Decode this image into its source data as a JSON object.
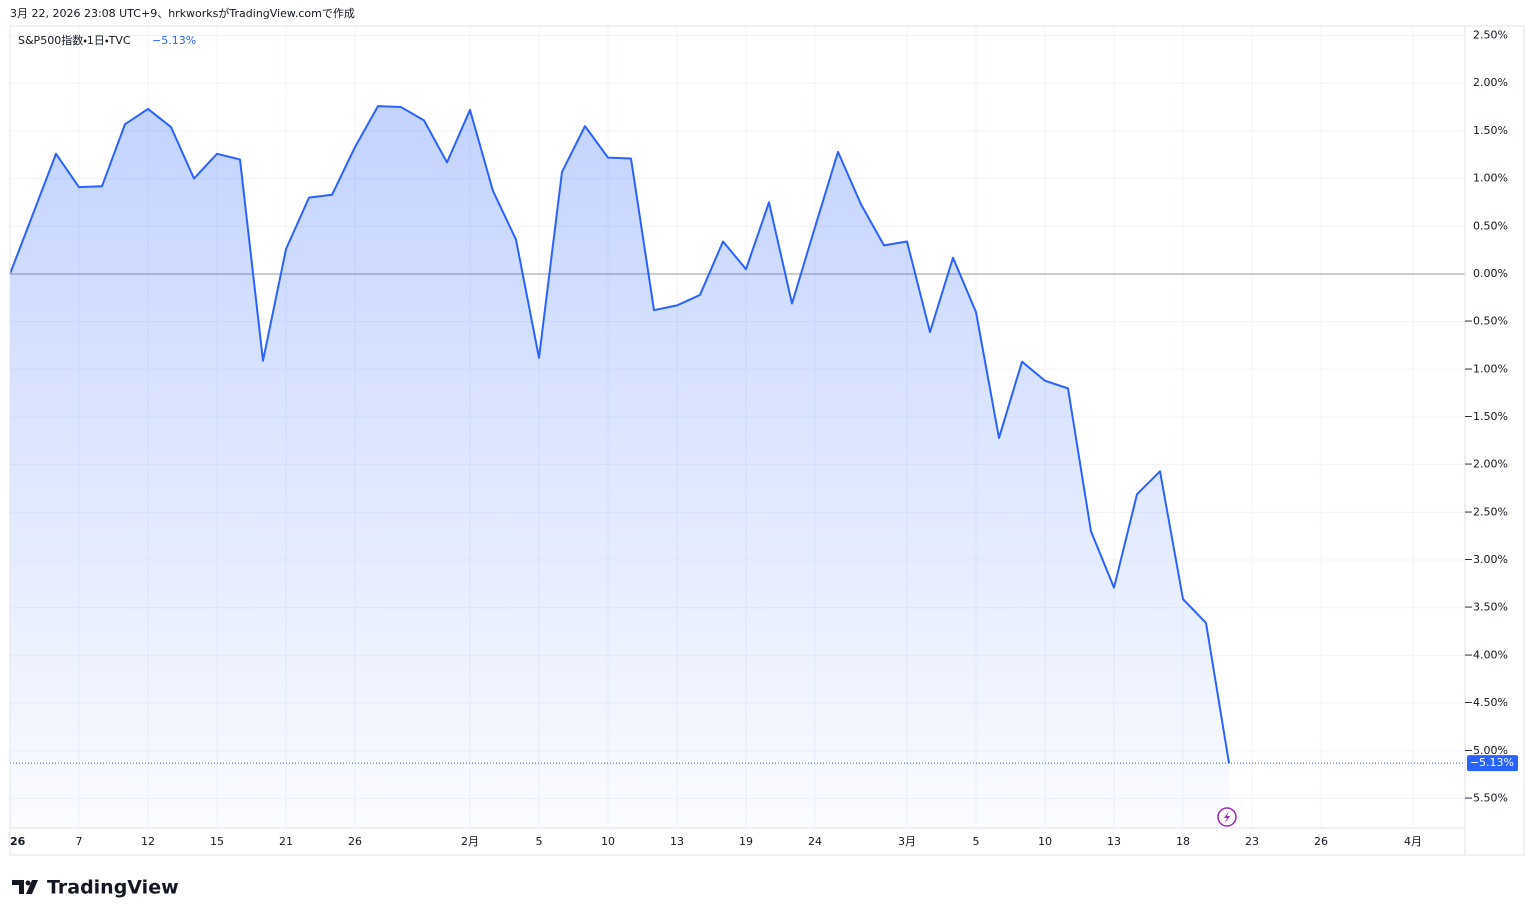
{
  "header": "3月 22, 2026 23:08 UTC+9、hrkworksがTradingView.comで作成",
  "logo": "TradingView",
  "chart_data": {
    "type": "area",
    "title": "S&P500指数・1日・TVC",
    "last_value_label": "−5.13%",
    "color": "#2962ff",
    "baseline": 0,
    "grid": true,
    "categories": [
      "26",
      null,
      null,
      "7",
      null,
      null,
      "12",
      null,
      null,
      "15",
      null,
      null,
      "21",
      null,
      null,
      "26",
      null,
      null,
      null,
      null,
      "2月",
      null,
      null,
      "5",
      null,
      null,
      "10",
      null,
      null,
      "13",
      null,
      null,
      "19",
      null,
      null,
      "24",
      null,
      null,
      null,
      "3月",
      null,
      null,
      "5",
      null,
      null,
      "10",
      null,
      null,
      "13",
      null,
      null,
      "18",
      null,
      null,
      "23",
      null,
      null,
      "26",
      null,
      null,
      null,
      "4月",
      null,
      null
    ],
    "values": [
      0,
      0.63,
      1.26,
      0.91,
      0.92,
      1.57,
      1.73,
      1.54,
      1.0,
      1.26,
      1.2,
      -0.91,
      0.26,
      0.8,
      0.83,
      1.33,
      1.76,
      1.75,
      1.61,
      1.17,
      1.72,
      0.87,
      0.36,
      -0.88,
      1.07,
      1.55,
      1.22,
      1.21,
      -0.38,
      -0.33,
      -0.22,
      0.34,
      0.05,
      0.75,
      -0.31,
      0.49,
      1.28,
      0.73,
      0.3,
      0.34,
      -0.61,
      0.17,
      -0.4,
      -1.72,
      -0.92,
      -1.12,
      -1.2,
      -2.7,
      -3.29,
      -2.31,
      -2.07,
      -3.41,
      -3.66,
      -5.13,
      null,
      null,
      null,
      null,
      null,
      null,
      null,
      null,
      null,
      null
    ],
    "ylim": [
      -5.81,
      2.6
    ],
    "yticks": [
      {
        "value": 2.5,
        "label": "2.50%"
      },
      {
        "value": 2.0,
        "label": "2.00%"
      },
      {
        "value": 1.5,
        "label": "1.50%"
      },
      {
        "value": 1.0,
        "label": "1.00%"
      },
      {
        "value": 0.5,
        "label": "0.50%"
      },
      {
        "value": 0,
        "label": "0.00%"
      },
      {
        "value": -0.5,
        "label": "−0.50%"
      },
      {
        "value": -1.0,
        "label": "−1.00%"
      },
      {
        "value": -1.5,
        "label": "−1.50%"
      },
      {
        "value": -2.0,
        "label": "−2.00%"
      },
      {
        "value": -2.5,
        "label": "−2.50%"
      },
      {
        "value": -3.0,
        "label": "−3.00%"
      },
      {
        "value": -3.5,
        "label": "−3.50%"
      },
      {
        "value": -4.0,
        "label": "−4.00%"
      },
      {
        "value": -4.5,
        "label": "−4.50%"
      },
      {
        "value": -5.0,
        "label": "−5.00%"
      },
      {
        "value": -5.5,
        "label": "−5.50%"
      }
    ]
  }
}
